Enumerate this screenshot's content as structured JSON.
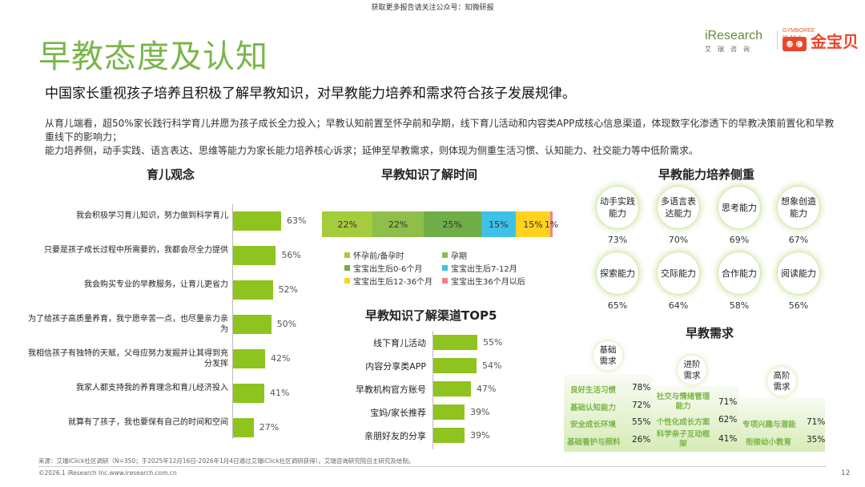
{
  "top_notice": "获取更多报告请关注公众号：知微研报",
  "title": "早教态度及认知",
  "logos": {
    "iresearch": "iResearch",
    "iresearch_sub": "艾瑞咨询",
    "gymboree": "GYMBOREE PLAY & MUSIC",
    "gymboree_cn": "金宝贝"
  },
  "subtitle": "中国家长重视孩子培养且积极了解早教知识，对早教能力培养和需求符合孩子发展规律。",
  "description": [
    "从育儿端看，超50%家长践行科学育儿并愿为孩子成长全力投入；早教认知前置至怀孕前和孕期，线下育儿活动和内容类APP成核心信息渠道，体现数字化渗透下的早教决策前置化和早教重线下的影响力；",
    "能力培养侧，动手实践、语言表达、思维等能力为家长能力培养核心诉求；延伸至早教需求，则体现为侧重生活习惯、认知能力、社交能力等中低阶需求。"
  ],
  "section_titles": {
    "parenting": "育儿观念",
    "knowledge_time": "早教知识了解时间",
    "channels": "早教知识了解渠道TOP5",
    "abilities": "早教能力培养侧重",
    "needs": "早教需求"
  },
  "chart_data": [
    {
      "type": "bar",
      "orientation": "horizontal",
      "title": "育儿观念",
      "categories": [
        "我会积极学习育儿知识，努力做到科学育儿",
        "只要是孩子成长过程中所需要的，我都会尽全力提供",
        "我会购买专业的早教服务，让育儿更省力",
        "为了给孩子高质量养育，我宁愿辛苦一点，也尽量亲力亲为",
        "我相信孩子有独特的天赋，父母应努力发掘并让其得到充分发挥",
        "我家人都支持我的养育理念和育儿经济投入",
        "就算有了孩子，我也要保有自己的时间和空间"
      ],
      "values": [
        63,
        56,
        52,
        50,
        42,
        41,
        27
      ],
      "unit": "%",
      "color": "#8fc31f"
    },
    {
      "type": "bar",
      "orientation": "horizontal-stacked",
      "title": "早教知识了解时间",
      "series": [
        {
          "name": "怀孕前/备孕时",
          "value": 22,
          "color": "#a4cc3c"
        },
        {
          "name": "孕期",
          "value": 22,
          "color": "#8ebf4a"
        },
        {
          "name": "宝宝出生后0-6个月",
          "value": 25,
          "color": "#6fae47"
        },
        {
          "name": "宝宝出生后7-12月",
          "value": 15,
          "color": "#3ec1e6"
        },
        {
          "name": "宝宝出生后12-36个月",
          "value": 15,
          "color": "#ffd21f"
        },
        {
          "name": "宝宝出生36个月以后",
          "value": 1,
          "color": "#f08090"
        }
      ],
      "unit": "%"
    },
    {
      "type": "bar",
      "orientation": "horizontal",
      "title": "早教知识了解渠道TOP5",
      "categories": [
        "线下育儿活动",
        "内容分享类APP",
        "早教机构官方账号",
        "宝妈/家长推荐",
        "亲朋好友的分享"
      ],
      "values": [
        55,
        54,
        47,
        39,
        39
      ],
      "unit": "%",
      "color": "#8fc31f"
    }
  ],
  "abilities": [
    {
      "label": "动手实践能力",
      "line1": "动手实践",
      "line2": "能力",
      "pct": "73%"
    },
    {
      "label": "多语言表达能力",
      "line1": "多语言表",
      "line2": "达能力",
      "pct": "70%"
    },
    {
      "label": "思考能力",
      "line1": "思考能力",
      "line2": "",
      "pct": "69%"
    },
    {
      "label": "想象创造能力",
      "line1": "想象创造",
      "line2": "能力",
      "pct": "67%"
    },
    {
      "label": "探索能力",
      "line1": "探索能力",
      "line2": "",
      "pct": "65%"
    },
    {
      "label": "交际能力",
      "line1": "交际能力",
      "line2": "",
      "pct": "64%"
    },
    {
      "label": "合作能力",
      "line1": "合作能力",
      "line2": "",
      "pct": "58%"
    },
    {
      "label": "阅读能力",
      "line1": "阅读能力",
      "line2": "",
      "pct": "56%"
    }
  ],
  "needs": {
    "basic": {
      "label1": "基础",
      "label2": "需求",
      "items": [
        {
          "name": "良好生活习惯",
          "val": "78%"
        },
        {
          "name": "基础认知能力",
          "val": "72%"
        },
        {
          "name": "安全成长环境",
          "val": "55%"
        },
        {
          "name": "基础看护与照料",
          "val": "26%"
        }
      ]
    },
    "advanced": {
      "label1": "进阶",
      "label2": "需求",
      "items": [
        {
          "name1": "社交与情绪管理",
          "name2": "能力",
          "val": "71%"
        },
        {
          "name1": "个性化成长方案",
          "name2": "",
          "val": "62%"
        },
        {
          "name1": "科学亲子互动框",
          "name2": "架",
          "val": "41%"
        }
      ]
    },
    "high": {
      "label1": "高阶",
      "label2": "需求",
      "items": [
        {
          "name": "专项兴趣与潜能",
          "val": "71%"
        },
        {
          "name": "衔接幼小教育",
          "val": "35%"
        }
      ]
    }
  },
  "footer": {
    "source": "来源：艾瑞iClick社区调研（N=350；于2025年12月16日-2026年1月4日通过艾瑞iClick社区调研获得）。艾瑞咨询研究院自主研究及绘制。",
    "copyright": "©2026.1 iResearch Inc.www.iresearch.com.cn",
    "page": "12"
  }
}
